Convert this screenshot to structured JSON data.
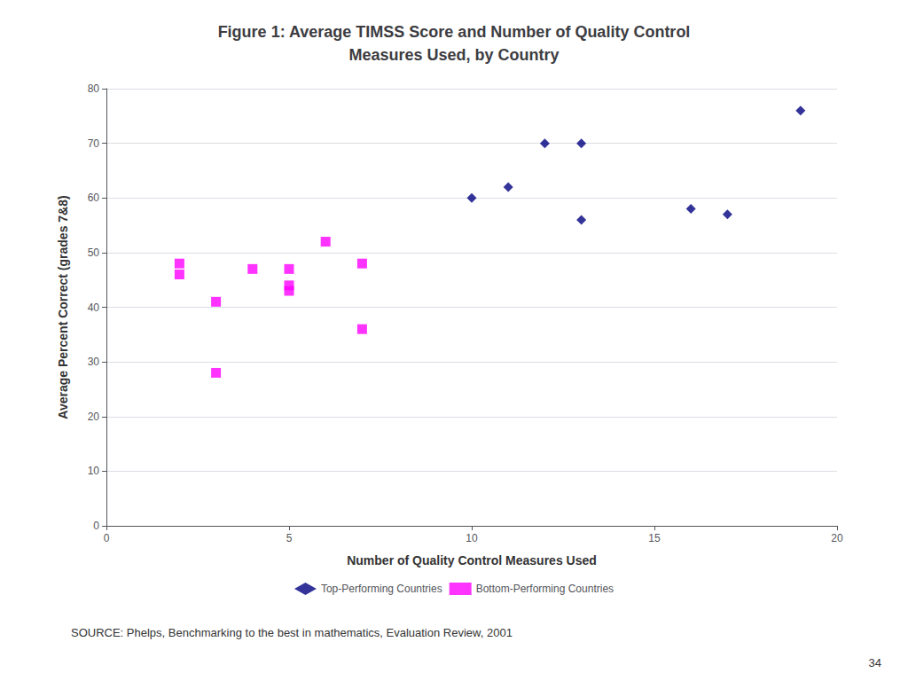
{
  "chart_data": {
    "type": "scatter",
    "title": "Figure 1: Average TIMSS Score and Number of Quality Control\nMeasures Used, by Country",
    "x_label": "Number of Quality Control Measures Used",
    "y_label": "Average Percent Correct (grades 7&8)",
    "series": [
      {
        "name": "Top-Performing Countries",
        "color": "#000080",
        "marker": "diamond",
        "x": [
          10,
          11,
          12,
          13,
          13,
          16,
          17,
          19
        ],
        "values": [
          60,
          62,
          70,
          70,
          56,
          58,
          57,
          76
        ]
      },
      {
        "name": "Bottom-Performing Countries",
        "color": "#FF00FF",
        "marker": "square",
        "x": [
          2,
          2,
          3,
          4,
          5,
          5,
          5,
          6,
          7,
          7,
          3
        ],
        "values": [
          48,
          46,
          41,
          47,
          47,
          44,
          43,
          52,
          48,
          36,
          28
        ]
      }
    ],
    "xlim": [
      0,
      20
    ],
    "ylim": [
      0,
      80
    ],
    "xticks": [
      0,
      5,
      10,
      15,
      20
    ],
    "yticks": [
      0,
      10,
      20,
      30,
      40,
      50,
      60,
      70,
      80
    ],
    "grid": "y",
    "legend": "bottom",
    "annotations": [
      "SOURCE: Phelps, Benchmarking to the best in mathematics, Evaluation Review, 2001",
      "34"
    ]
  }
}
